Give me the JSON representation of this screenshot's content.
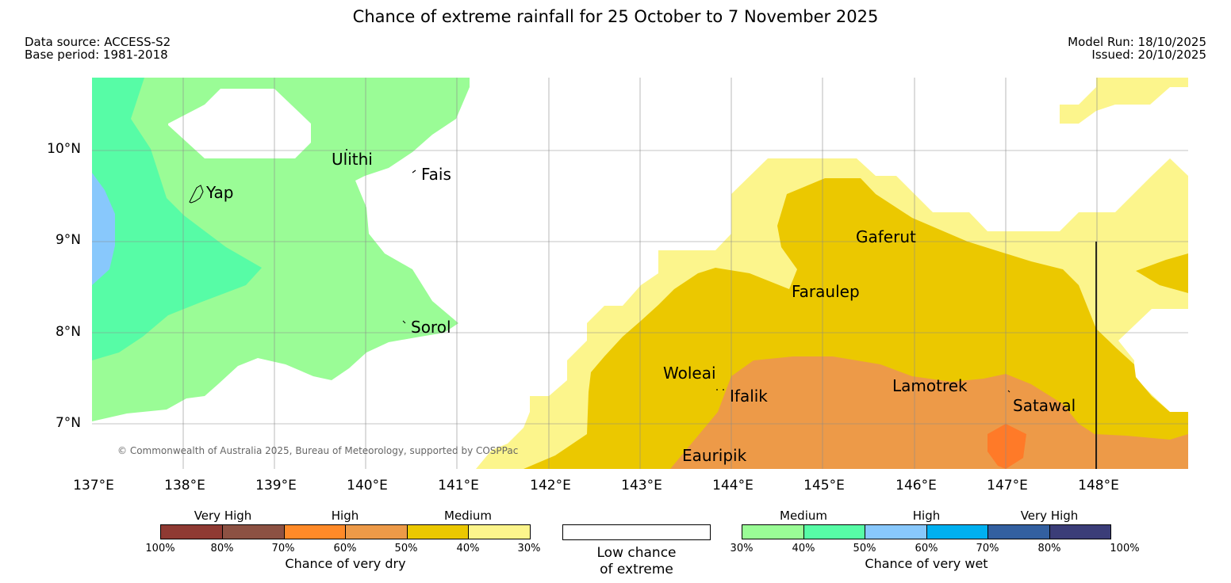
{
  "title": "Chance of extreme rainfall for 25 October to 7 November 2025",
  "meta": {
    "data_source": "Data source: ACCESS-S2",
    "base_period": "Base period: 1981-2018",
    "model_run": "Model Run: 18/10/2025",
    "issued": "Issued: 20/10/2025"
  },
  "map": {
    "lat_ticks": [
      "10°N",
      "9°N",
      "8°N",
      "7°N"
    ],
    "lon_ticks": [
      "137°E",
      "138°E",
      "139°E",
      "140°E",
      "141°E",
      "142°E",
      "143°E",
      "144°E",
      "145°E",
      "146°E",
      "147°E",
      "148°E"
    ],
    "places": {
      "ulithi": "Ulithi",
      "fais": "Fais",
      "yap": "Yap",
      "sorol": "Sorol",
      "gaferut": "Gaferut",
      "faraulep": "Faraulep",
      "woleai": "Woleai",
      "ifalik": "Ifalik",
      "lamotrek": "Lamotrek",
      "satawal": "Satawal",
      "eauripik": "Eauripik"
    },
    "copyright": "© Commonwealth of Australia 2025, Bureau of Meteorology, supported by COSPPac"
  },
  "legend": {
    "dry": {
      "categories": [
        "Very High",
        "High",
        "Medium"
      ],
      "colors": [
        "#8f3a33",
        "#8c5143",
        "#ff8a28",
        "#ed9a48",
        "#ebc800",
        "#fcf58c"
      ],
      "ticks": [
        "100%",
        "80%",
        "70%",
        "60%",
        "50%",
        "40%",
        "30%"
      ],
      "title": "Chance of very dry"
    },
    "low": {
      "line1": "Low chance",
      "line2": "of extreme"
    },
    "wet": {
      "categories": [
        "Medium",
        "High",
        "Very High"
      ],
      "colors": [
        "#9afc96",
        "#57fca6",
        "#88c8fc",
        "#00b0f0",
        "#3360a0",
        "#3b3d78"
      ],
      "ticks": [
        "30%",
        "40%",
        "50%",
        "60%",
        "70%",
        "80%",
        "100%"
      ],
      "title": "Chance of very wet"
    }
  }
}
